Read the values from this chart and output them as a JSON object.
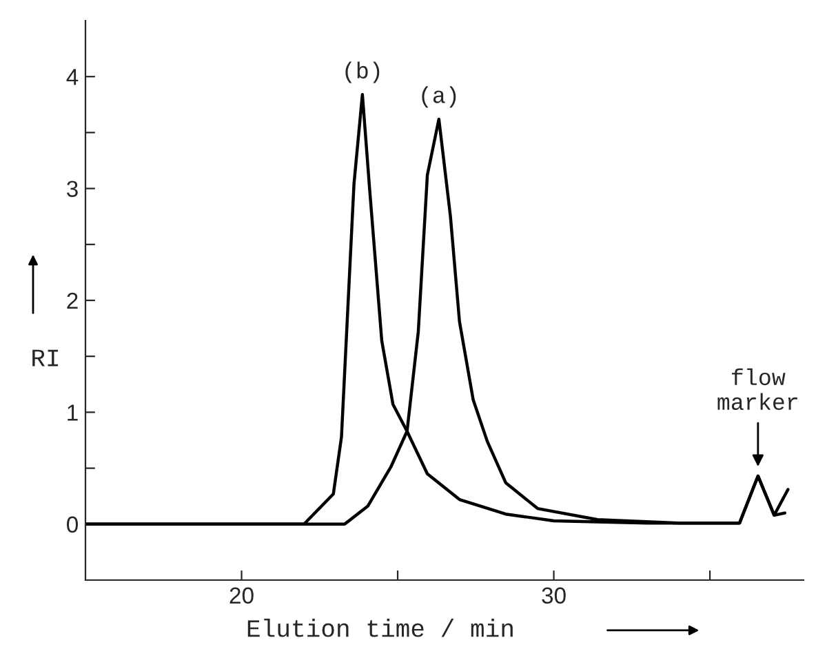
{
  "chart_data": {
    "type": "line",
    "xlabel": "Elution time / min",
    "ylabel": "RI",
    "xlim": [
      15,
      38
    ],
    "ylim": [
      -0.5,
      4.5
    ],
    "xticks": [
      20,
      {
        "value": 25,
        "label": null
      },
      30,
      {
        "value": 35,
        "label": null
      }
    ],
    "yticks": [
      0,
      {
        "value": 0.5,
        "label": null
      },
      1,
      {
        "value": 1.5,
        "label": null
      },
      2,
      {
        "value": 2.5,
        "label": null
      },
      3,
      {
        "value": 3.5,
        "label": null
      },
      4
    ],
    "grid": false,
    "legend": false,
    "marker": "none",
    "line_style": "solid",
    "series": [
      {
        "color": "#000000",
        "x": [
          15,
          20,
          23.3,
          24.04,
          24.78,
          25.3,
          25.66,
          25.95,
          26.32,
          26.69,
          26.98,
          27.42,
          27.87,
          28.46,
          29.48,
          31.4,
          34,
          35.95,
          36.54,
          37.06,
          37.5
        ],
        "values": [
          0,
          0,
          0,
          0.16,
          0.51,
          0.83,
          1.72,
          3.12,
          3.62,
          2.75,
          1.81,
          1.11,
          0.74,
          0.37,
          0.14,
          0.04,
          0.01,
          0.01,
          0.43,
          0.08,
          0.31
        ]
      },
      {
        "color": "#000000",
        "x": [
          15,
          20,
          22.0,
          22.94,
          23.2,
          23.6,
          23.87,
          24.1,
          24.49,
          24.85,
          25.3,
          25.95,
          26.98,
          28.46,
          30,
          33,
          35.95,
          36.54,
          37.06,
          37.4
        ],
        "values": [
          0,
          0,
          0,
          0.27,
          0.78,
          3.04,
          3.84,
          3.0,
          1.64,
          1.07,
          0.83,
          0.45,
          0.22,
          0.09,
          0.03,
          0.01,
          0.01,
          0.43,
          0.08,
          0.1
        ]
      }
    ],
    "annotations": [
      {
        "text": "(b)",
        "x": 23.87,
        "y": 3.84
      },
      {
        "text": "(a)",
        "x": 26.32,
        "y": 3.62
      },
      {
        "text": "flow\nmarker",
        "x": 36.54,
        "y": 0.43
      }
    ]
  }
}
